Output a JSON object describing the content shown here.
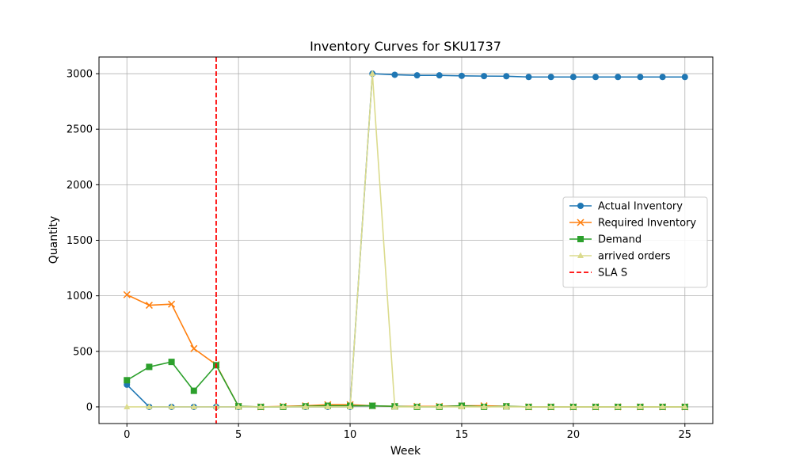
{
  "chart_data": {
    "type": "line",
    "title": "Inventory Curves for SKU1737",
    "xlabel": "Week",
    "ylabel": "Quantity",
    "xlim": [
      -1.25,
      26.25
    ],
    "ylim": [
      -150,
      3150
    ],
    "xticks": [
      0,
      5,
      10,
      15,
      20,
      25
    ],
    "yticks": [
      0,
      500,
      1000,
      1500,
      2000,
      2500,
      3000
    ],
    "grid": true,
    "legend_position": "center-right",
    "x": [
      0,
      1,
      2,
      3,
      4,
      5,
      6,
      7,
      8,
      9,
      10,
      11,
      12,
      13,
      14,
      15,
      16,
      17,
      18,
      19,
      20,
      21,
      22,
      23,
      24,
      25
    ],
    "series": [
      {
        "name": "Actual Inventory",
        "color": "#1f77b4",
        "marker": "circle",
        "line": "solid",
        "values": [
          200,
          0,
          0,
          0,
          0,
          0,
          0,
          0,
          0,
          0,
          0,
          3000,
          2990,
          2985,
          2985,
          2980,
          2978,
          2977,
          2970,
          2970,
          2970,
          2970,
          2970,
          2970,
          2970,
          2970
        ]
      },
      {
        "name": "Required Inventory",
        "color": "#ff7f0e",
        "marker": "x",
        "line": "solid",
        "values": [
          1010,
          915,
          925,
          525,
          380,
          5,
          0,
          5,
          10,
          20,
          20,
          10,
          5,
          5,
          5,
          10,
          10,
          5,
          0,
          0,
          0,
          0,
          0,
          0,
          0,
          0
        ]
      },
      {
        "name": "Demand",
        "color": "#2ca02c",
        "marker": "square",
        "line": "solid",
        "values": [
          240,
          360,
          405,
          145,
          375,
          5,
          0,
          0,
          5,
          10,
          10,
          10,
          5,
          0,
          0,
          10,
          0,
          5,
          0,
          0,
          0,
          0,
          0,
          0,
          0,
          0
        ]
      },
      {
        "name": "arrived orders",
        "color": "#dbdb8d",
        "marker": "triangle",
        "line": "solid",
        "values": [
          0,
          0,
          0,
          0,
          0,
          0,
          0,
          0,
          0,
          0,
          0,
          3000,
          0,
          0,
          0,
          0,
          0,
          0,
          0,
          0,
          0,
          0,
          0,
          0,
          0,
          0
        ]
      }
    ],
    "vlines": [
      {
        "name": "SLA S",
        "x": 4,
        "color": "#ff0000",
        "line": "dashed"
      }
    ]
  }
}
